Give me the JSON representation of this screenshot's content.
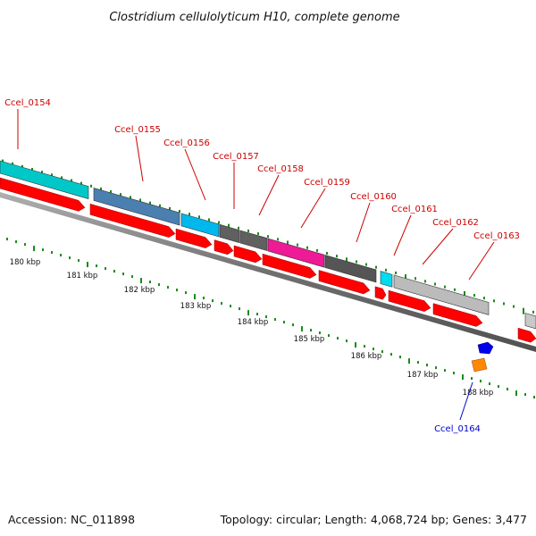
{
  "title": "Clostridium cellulolyticum H10, complete genome",
  "footer": {
    "accession": "Accession: NC_011898",
    "summary": "Topology: circular; Length: 4,068,724 bp; Genes: 3,477"
  },
  "colors": {
    "cds": "#ff0000",
    "label_top": "#cc0000",
    "label_bottom": "#0000cc",
    "backbone": "#777777",
    "tick": "#1a8a1a"
  },
  "gene_labels_top": [
    {
      "name": "Ccel_0154",
      "color": "#00c8c8"
    },
    {
      "name": "Ccel_0155",
      "color": "#4a7fb0"
    },
    {
      "name": "Ccel_0156",
      "color": "#00b8ee"
    },
    {
      "name": "Ccel_0157",
      "color": "#606060"
    },
    {
      "name": "Ccel_0158",
      "color": "#606060"
    },
    {
      "name": "Ccel_0159",
      "color": "#ee1a96"
    },
    {
      "name": "Ccel_0160",
      "color": "#555555"
    },
    {
      "name": "Ccel_0161",
      "color": "#00ddee"
    },
    {
      "name": "Ccel_0162",
      "color": "#bbbbbb"
    },
    {
      "name": "Ccel_0163",
      "color": "#c8c8c8"
    }
  ],
  "gene_label_bottom": {
    "name": "Ccel_0164",
    "color": "#0000cc"
  },
  "kbp_labels": [
    "180 kbp",
    "181 kbp",
    "182 kbp",
    "183 kbp",
    "184 kbp",
    "185 kbp",
    "186 kbp",
    "187 kbp",
    "188 kbp"
  ]
}
